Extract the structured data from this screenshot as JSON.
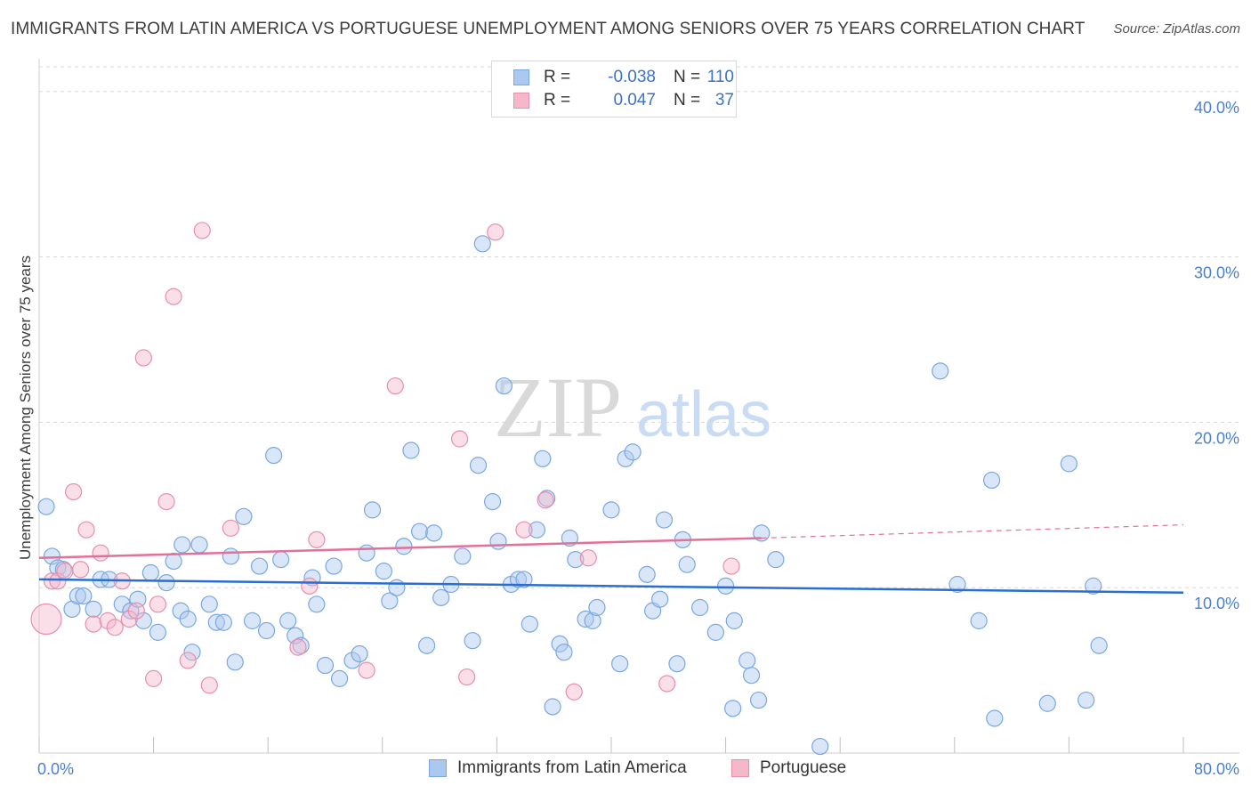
{
  "header": {
    "title": "IMMIGRANTS FROM LATIN AMERICA VS PORTUGUESE UNEMPLOYMENT AMONG SENIORS OVER 75 YEARS CORRELATION CHART",
    "source": "Source: ZipAtlas.com"
  },
  "watermark": {
    "zip": "ZIP",
    "atlas": "atlas"
  },
  "legend": {
    "r_label": "R =",
    "n_label": "N =",
    "rows": [
      {
        "r": "-0.038",
        "n": "110"
      },
      {
        "r": "0.047",
        "n": "37"
      }
    ]
  },
  "bottom_legend": {
    "series1": "Immigrants from Latin America",
    "series2": "Portuguese"
  },
  "colors": {
    "blue_fill": "#aac8f0",
    "blue_stroke": "#7aa7e0",
    "blue_line": "#2a6fcf",
    "pink_fill": "#f5b8cb",
    "pink_stroke": "#e88fab",
    "pink_line": "#e2719a",
    "grid": "#d8d8d8",
    "tick_text": "#4a7fd4"
  },
  "chart_data": {
    "type": "scatter",
    "title": "IMMIGRANTS FROM LATIN AMERICA VS PORTUGUESE UNEMPLOYMENT AMONG SENIORS OVER 75 YEARS CORRELATION CHART",
    "xlabel": "",
    "ylabel": "Unemployment Among Seniors over 75 years",
    "xlim": [
      0,
      80
    ],
    "ylim": [
      0,
      41.5
    ],
    "x_tick_labels": [
      "0.0%",
      "80.0%"
    ],
    "y_ticks": [
      10,
      20,
      30,
      40
    ],
    "y_tick_labels": [
      "10.0%",
      "20.0%",
      "30.0%",
      "40.0%"
    ],
    "grid": true,
    "legend_position": "top-center",
    "series": [
      {
        "name": "Immigrants from Latin America",
        "r": -0.038,
        "n": 110,
        "trend": {
          "x": [
            0,
            80
          ],
          "y": [
            10.5,
            9.7
          ]
        },
        "points": [
          [
            0.5,
            14.9
          ],
          [
            0.9,
            11.9
          ],
          [
            1.3,
            11.2
          ],
          [
            1.7,
            11.1
          ],
          [
            2.3,
            8.7
          ],
          [
            2.7,
            9.5
          ],
          [
            3.1,
            9.5
          ],
          [
            3.8,
            8.7
          ],
          [
            4.3,
            10.5
          ],
          [
            4.9,
            10.5
          ],
          [
            5.8,
            9.0
          ],
          [
            6.4,
            8.6
          ],
          [
            6.9,
            9.3
          ],
          [
            7.3,
            8.0
          ],
          [
            7.8,
            10.9
          ],
          [
            8.3,
            7.3
          ],
          [
            8.9,
            10.3
          ],
          [
            9.4,
            11.6
          ],
          [
            9.9,
            8.6
          ],
          [
            10.4,
            8.1
          ],
          [
            10.7,
            6.1
          ],
          [
            11.2,
            12.6
          ],
          [
            11.9,
            9.0
          ],
          [
            12.4,
            7.9
          ],
          [
            12.9,
            7.9
          ],
          [
            13.4,
            11.9
          ],
          [
            13.7,
            5.5
          ],
          [
            14.3,
            14.3
          ],
          [
            14.9,
            8.0
          ],
          [
            15.4,
            11.3
          ],
          [
            15.9,
            7.4
          ],
          [
            16.4,
            18.0
          ],
          [
            16.9,
            11.7
          ],
          [
            17.4,
            8.0
          ],
          [
            17.9,
            7.1
          ],
          [
            18.3,
            6.5
          ],
          [
            19.1,
            10.6
          ],
          [
            19.4,
            9.0
          ],
          [
            20.0,
            5.3
          ],
          [
            20.6,
            11.3
          ],
          [
            21.0,
            4.5
          ],
          [
            21.9,
            5.6
          ],
          [
            22.4,
            6.0
          ],
          [
            22.9,
            12.1
          ],
          [
            23.3,
            14.7
          ],
          [
            24.1,
            11.0
          ],
          [
            24.5,
            9.2
          ],
          [
            25.0,
            10.0
          ],
          [
            25.5,
            12.5
          ],
          [
            26.0,
            18.3
          ],
          [
            26.6,
            13.4
          ],
          [
            27.1,
            6.5
          ],
          [
            27.6,
            13.3
          ],
          [
            28.1,
            9.4
          ],
          [
            28.8,
            10.2
          ],
          [
            29.6,
            11.9
          ],
          [
            30.3,
            6.8
          ],
          [
            30.7,
            17.4
          ],
          [
            31.0,
            30.8
          ],
          [
            31.7,
            15.2
          ],
          [
            32.1,
            12.8
          ],
          [
            32.5,
            22.2
          ],
          [
            33.0,
            10.2
          ],
          [
            33.5,
            10.5
          ],
          [
            33.9,
            10.5
          ],
          [
            34.3,
            7.8
          ],
          [
            34.8,
            13.5
          ],
          [
            35.2,
            17.8
          ],
          [
            35.5,
            15.4
          ],
          [
            35.9,
            2.8
          ],
          [
            36.4,
            6.6
          ],
          [
            36.7,
            6.1
          ],
          [
            37.1,
            13.0
          ],
          [
            37.5,
            11.7
          ],
          [
            38.2,
            8.1
          ],
          [
            38.7,
            8.0
          ],
          [
            39.0,
            8.8
          ],
          [
            40.0,
            14.7
          ],
          [
            40.6,
            5.4
          ],
          [
            41.0,
            17.8
          ],
          [
            41.5,
            18.2
          ],
          [
            42.5,
            10.8
          ],
          [
            42.9,
            8.6
          ],
          [
            43.4,
            9.3
          ],
          [
            43.7,
            14.1
          ],
          [
            44.6,
            5.4
          ],
          [
            45.0,
            12.9
          ],
          [
            45.3,
            11.4
          ],
          [
            46.2,
            8.8
          ],
          [
            47.3,
            7.3
          ],
          [
            48.0,
            10.1
          ],
          [
            48.5,
            2.7
          ],
          [
            48.6,
            8.0
          ],
          [
            49.5,
            5.6
          ],
          [
            49.8,
            4.7
          ],
          [
            50.3,
            3.2
          ],
          [
            50.5,
            13.3
          ],
          [
            51.5,
            11.7
          ],
          [
            54.6,
            0.4
          ],
          [
            63.0,
            23.1
          ],
          [
            64.2,
            10.2
          ],
          [
            65.7,
            8.0
          ],
          [
            66.6,
            16.5
          ],
          [
            66.8,
            2.1
          ],
          [
            70.5,
            3.0
          ],
          [
            72.0,
            17.5
          ],
          [
            73.2,
            3.2
          ],
          [
            73.7,
            10.1
          ],
          [
            74.1,
            6.5
          ],
          [
            10.0,
            12.6
          ]
        ]
      },
      {
        "name": "Portuguese",
        "r": 0.047,
        "n": 37,
        "trend": {
          "x": [
            0,
            50.5
          ],
          "y": [
            11.8,
            13.0
          ]
        },
        "trend_dashed": {
          "x": [
            50.5,
            80
          ],
          "y": [
            13.0,
            13.8
          ]
        },
        "points": [
          [
            0.5,
            8.1
          ],
          [
            0.9,
            10.4
          ],
          [
            1.3,
            10.4
          ],
          [
            1.8,
            11.0
          ],
          [
            2.4,
            15.8
          ],
          [
            2.9,
            11.1
          ],
          [
            3.3,
            13.5
          ],
          [
            3.8,
            7.8
          ],
          [
            4.3,
            12.1
          ],
          [
            4.8,
            8.0
          ],
          [
            5.3,
            7.6
          ],
          [
            5.8,
            10.4
          ],
          [
            6.3,
            8.1
          ],
          [
            6.8,
            8.6
          ],
          [
            7.3,
            23.9
          ],
          [
            8.0,
            4.5
          ],
          [
            8.3,
            9.0
          ],
          [
            8.9,
            15.2
          ],
          [
            9.4,
            27.6
          ],
          [
            10.4,
            5.6
          ],
          [
            11.4,
            31.6
          ],
          [
            11.9,
            4.1
          ],
          [
            13.4,
            13.6
          ],
          [
            18.1,
            6.4
          ],
          [
            18.9,
            10.1
          ],
          [
            19.4,
            12.9
          ],
          [
            22.9,
            5.0
          ],
          [
            24.9,
            22.2
          ],
          [
            29.4,
            19.0
          ],
          [
            29.9,
            4.6
          ],
          [
            31.9,
            31.5
          ],
          [
            33.9,
            13.5
          ],
          [
            35.4,
            15.3
          ],
          [
            37.4,
            3.7
          ],
          [
            38.4,
            11.8
          ],
          [
            43.9,
            4.2
          ],
          [
            48.4,
            11.3
          ]
        ]
      }
    ]
  }
}
